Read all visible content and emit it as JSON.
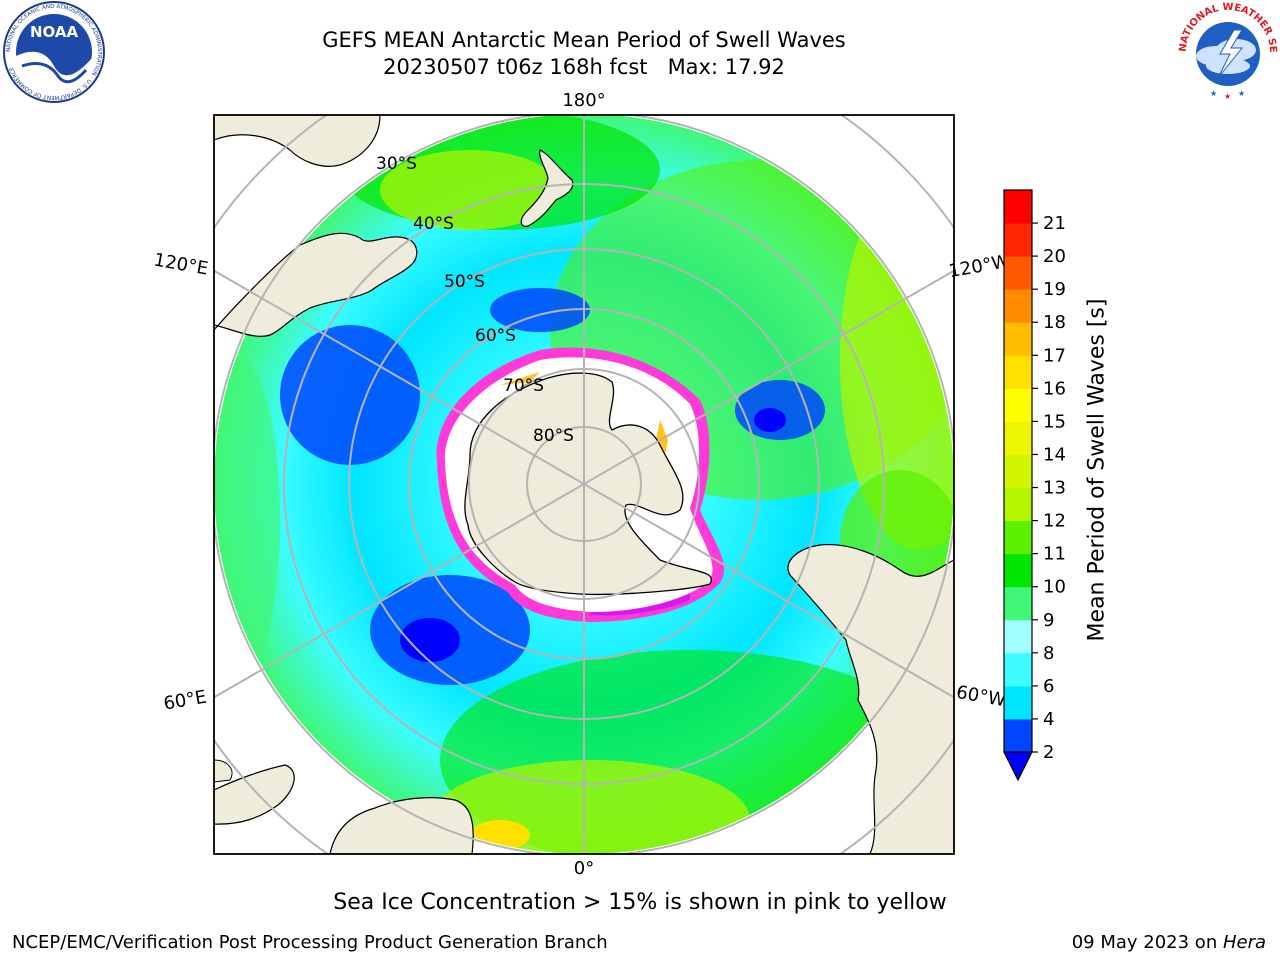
{
  "title": {
    "line1": "GEFS MEAN Antarctic Mean Period of Swell Waves",
    "line2": "20230507 t06z 168h fcst   Max: 17.92"
  },
  "map": {
    "projection": "south polar stereographic",
    "longitude_labels": [
      "180°",
      "120°E",
      "120°W",
      "60°E",
      "60°W",
      "0°"
    ],
    "latitude_labels": [
      "30°S",
      "40°S",
      "50°S",
      "60°S",
      "70°S",
      "80°S"
    ],
    "colors": {
      "land": "#efecdc",
      "grid": "#b4b4b4",
      "sea_ice_edge": "#ff3ad8",
      "ice_interior": "#ffffff"
    }
  },
  "colorbar": {
    "label": "Mean Period of Swell Waves [s]",
    "ticks": [
      "2",
      "4",
      "6",
      "8",
      "9",
      "10",
      "11",
      "12",
      "13",
      "14",
      "15",
      "16",
      "17",
      "18",
      "19",
      "20",
      "21"
    ],
    "colors": [
      "#0046ff",
      "#00e6ff",
      "#3cfcff",
      "#a0ffff",
      "#41f778",
      "#00e600",
      "#5af000",
      "#b4f500",
      "#d2f500",
      "#eef500",
      "#ffff00",
      "#ffe100",
      "#ffbe00",
      "#ff8c00",
      "#ff5a00",
      "#ff2600",
      "#ff0000"
    ],
    "extend_min_color": "#0000ff"
  },
  "footer": {
    "note": "Sea Ice Concentration > 15% is shown in pink to yellow",
    "credit": "NCEP/EMC/Verification Post Processing Product Generation Branch",
    "date": "09 May 2023 on ",
    "host": "Hera"
  },
  "logos": {
    "noaa_text": "NOAA",
    "noaa_ring": "NATIONAL OCEANIC AND ATMOSPHERIC ADMINISTRATION · U.S. DEPARTMENT OF COMMERCE",
    "nws_ring": "NATIONAL WEATHER SERVICE"
  }
}
